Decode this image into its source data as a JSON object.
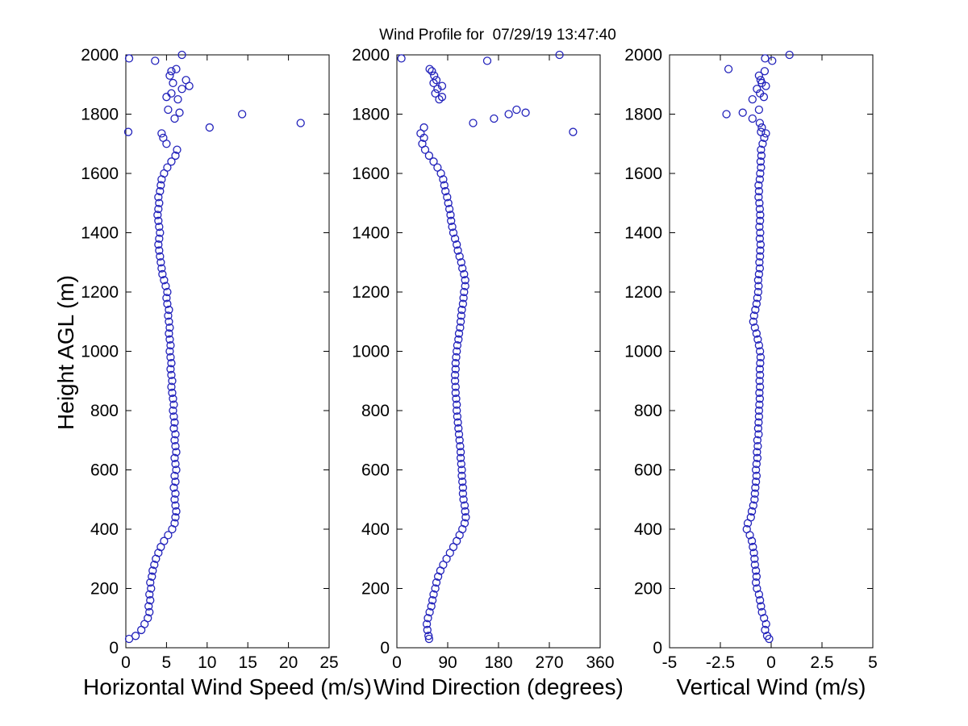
{
  "chart_data": {
    "type": "scatter",
    "title": "Wind Profile for  07/29/19 13:47:40",
    "ylabel": "Height AGL (m)",
    "ylim": [
      0,
      2000
    ],
    "yticks": [
      0,
      200,
      400,
      600,
      800,
      1000,
      1200,
      1400,
      1600,
      1800,
      2000
    ],
    "marker": "open-circle",
    "marker_color": "#2222bb",
    "grid": false,
    "legend": "none",
    "panels": [
      {
        "name": "horizontal-wind-speed-panel",
        "xlabel": "Horizontal Wind Speed (m/s)",
        "xlim": [
          0,
          25
        ],
        "xticks": [
          0,
          5,
          10,
          15,
          20,
          25
        ],
        "xtick_labels": [
          "0",
          "5",
          "10",
          "15",
          "20",
          "25"
        ],
        "field": "wind_speed_ms"
      },
      {
        "name": "wind-direction-panel",
        "xlabel": "Wind Direction (degrees)",
        "xlim": [
          0,
          360
        ],
        "xticks": [
          0,
          90,
          180,
          270,
          360
        ],
        "xtick_labels": [
          "0",
          "90",
          "180",
          "270",
          "360"
        ],
        "field": "wind_direction_deg"
      },
      {
        "name": "vertical-wind-panel",
        "xlabel": "Vertical Wind (m/s)",
        "xlim": [
          -5,
          5
        ],
        "xticks": [
          -5,
          -2.5,
          0,
          2.5,
          5
        ],
        "xtick_labels": [
          "-5",
          "-2.5",
          "0",
          "2.5",
          "5"
        ],
        "field": "vertical_wind_ms"
      }
    ],
    "columns": [
      "height_m",
      "wind_speed_ms",
      "wind_direction_deg",
      "vertical_wind_ms"
    ],
    "points": [
      [
        30,
        0.4,
        57,
        -0.1
      ],
      [
        40,
        1.2,
        56,
        -0.2
      ],
      [
        60,
        1.9,
        54,
        -0.3
      ],
      [
        80,
        2.3,
        53,
        -0.25
      ],
      [
        100,
        2.7,
        55,
        -0.35
      ],
      [
        120,
        2.9,
        58,
        -0.45
      ],
      [
        140,
        2.8,
        61,
        -0.5
      ],
      [
        160,
        3.0,
        63,
        -0.55
      ],
      [
        180,
        2.9,
        65,
        -0.6
      ],
      [
        200,
        3.1,
        68,
        -0.7
      ],
      [
        220,
        3.0,
        70,
        -0.75
      ],
      [
        240,
        3.2,
        73,
        -0.72
      ],
      [
        260,
        3.3,
        77,
        -0.75
      ],
      [
        280,
        3.5,
        82,
        -0.8
      ],
      [
        300,
        3.7,
        88,
        -0.82
      ],
      [
        320,
        4.0,
        94,
        -0.85
      ],
      [
        340,
        4.3,
        100,
        -0.9
      ],
      [
        360,
        4.7,
        106,
        -0.95
      ],
      [
        380,
        5.2,
        111,
        -1.05
      ],
      [
        400,
        5.7,
        116,
        -1.2
      ],
      [
        420,
        6.0,
        120,
        -1.15
      ],
      [
        440,
        6.1,
        122,
        -1.0
      ],
      [
        460,
        6.2,
        121,
        -0.95
      ],
      [
        480,
        6.1,
        120,
        -0.88
      ],
      [
        500,
        6.0,
        118,
        -0.82
      ],
      [
        520,
        6.1,
        117,
        -0.8
      ],
      [
        540,
        5.9,
        117,
        -0.78
      ],
      [
        560,
        6.1,
        116,
        -0.75
      ],
      [
        580,
        6.0,
        115,
        -0.72
      ],
      [
        600,
        6.2,
        115,
        -0.75
      ],
      [
        620,
        6.1,
        114,
        -0.72
      ],
      [
        640,
        6.0,
        113,
        -0.68
      ],
      [
        660,
        6.2,
        113,
        -0.7
      ],
      [
        680,
        6.1,
        112,
        -0.66
      ],
      [
        700,
        6.0,
        111,
        -0.68
      ],
      [
        720,
        6.1,
        110,
        -0.62
      ],
      [
        740,
        5.9,
        109,
        -0.64
      ],
      [
        760,
        6.0,
        108,
        -0.62
      ],
      [
        780,
        5.9,
        107,
        -0.6
      ],
      [
        800,
        5.8,
        106,
        -0.6
      ],
      [
        820,
        5.9,
        106,
        -0.58
      ],
      [
        840,
        5.8,
        105,
        -0.56
      ],
      [
        860,
        5.7,
        104,
        -0.58
      ],
      [
        880,
        5.6,
        104,
        -0.55
      ],
      [
        900,
        5.7,
        103,
        -0.57
      ],
      [
        920,
        5.6,
        103,
        -0.55
      ],
      [
        940,
        5.5,
        104,
        -0.56
      ],
      [
        960,
        5.6,
        104,
        -0.54
      ],
      [
        980,
        5.5,
        105,
        -0.52
      ],
      [
        1000,
        5.4,
        106,
        -0.55
      ],
      [
        1020,
        5.5,
        107,
        -0.6
      ],
      [
        1040,
        5.4,
        109,
        -0.66
      ],
      [
        1060,
        5.3,
        110,
        -0.72
      ],
      [
        1080,
        5.4,
        112,
        -0.8
      ],
      [
        1100,
        5.3,
        113,
        -0.88
      ],
      [
        1120,
        5.2,
        114,
        -0.84
      ],
      [
        1140,
        5.3,
        115,
        -0.78
      ],
      [
        1160,
        5.1,
        117,
        -0.72
      ],
      [
        1180,
        5.0,
        118,
        -0.68
      ],
      [
        1200,
        5.1,
        119,
        -0.64
      ],
      [
        1220,
        4.9,
        121,
        -0.62
      ],
      [
        1240,
        4.7,
        121,
        -0.64
      ],
      [
        1260,
        4.5,
        119,
        -0.6
      ],
      [
        1280,
        4.4,
        116,
        -0.56
      ],
      [
        1300,
        4.3,
        114,
        -0.58
      ],
      [
        1320,
        4.2,
        111,
        -0.55
      ],
      [
        1340,
        4.1,
        108,
        -0.54
      ],
      [
        1360,
        4.0,
        106,
        -0.52
      ],
      [
        1380,
        4.1,
        103,
        -0.56
      ],
      [
        1400,
        4.2,
        100,
        -0.54
      ],
      [
        1420,
        4.1,
        98,
        -0.58
      ],
      [
        1440,
        4.0,
        96,
        -0.55
      ],
      [
        1460,
        3.9,
        95,
        -0.54
      ],
      [
        1480,
        4.0,
        93,
        -0.56
      ],
      [
        1500,
        4.1,
        91,
        -0.58
      ],
      [
        1520,
        4.0,
        89,
        -0.62
      ],
      [
        1540,
        4.2,
        86,
        -0.6
      ],
      [
        1560,
        4.3,
        84,
        -0.62
      ],
      [
        1580,
        4.4,
        82,
        -0.56
      ],
      [
        1600,
        4.7,
        78,
        -0.54
      ],
      [
        1620,
        5.1,
        72,
        -0.5
      ],
      [
        1640,
        5.6,
        65,
        -0.52
      ],
      [
        1660,
        6.1,
        57,
        -0.48
      ],
      [
        1680,
        6.3,
        50,
        -0.5
      ],
      [
        1700,
        5.0,
        45,
        -0.42
      ],
      [
        1720,
        4.6,
        48,
        -0.34
      ],
      [
        1735,
        4.4,
        42,
        -0.26
      ],
      [
        1740,
        0.3,
        312,
        -0.5
      ],
      [
        1755,
        10.3,
        48,
        -0.46
      ],
      [
        1770,
        21.5,
        135,
        -0.56
      ],
      [
        1785,
        6.0,
        172,
        -0.92
      ],
      [
        1800,
        14.3,
        198,
        -2.2
      ],
      [
        1805,
        6.6,
        228,
        -1.4
      ],
      [
        1815,
        5.2,
        212,
        -0.6
      ],
      [
        1850,
        6.4,
        75,
        -0.92
      ],
      [
        1858,
        5.0,
        80,
        -0.36
      ],
      [
        1870,
        5.6,
        68,
        -0.55
      ],
      [
        1885,
        6.9,
        72,
        -0.7
      ],
      [
        1895,
        7.8,
        80,
        -0.26
      ],
      [
        1905,
        5.8,
        65,
        -0.46
      ],
      [
        1915,
        7.4,
        70,
        -0.52
      ],
      [
        1930,
        5.4,
        66,
        -0.6
      ],
      [
        1945,
        5.6,
        62,
        -0.32
      ],
      [
        1952,
        6.2,
        58,
        -2.1
      ],
      [
        1980,
        3.6,
        160,
        0.05
      ],
      [
        1988,
        0.4,
        8,
        -0.3
      ],
      [
        2000,
        6.9,
        288,
        0.9
      ]
    ]
  }
}
